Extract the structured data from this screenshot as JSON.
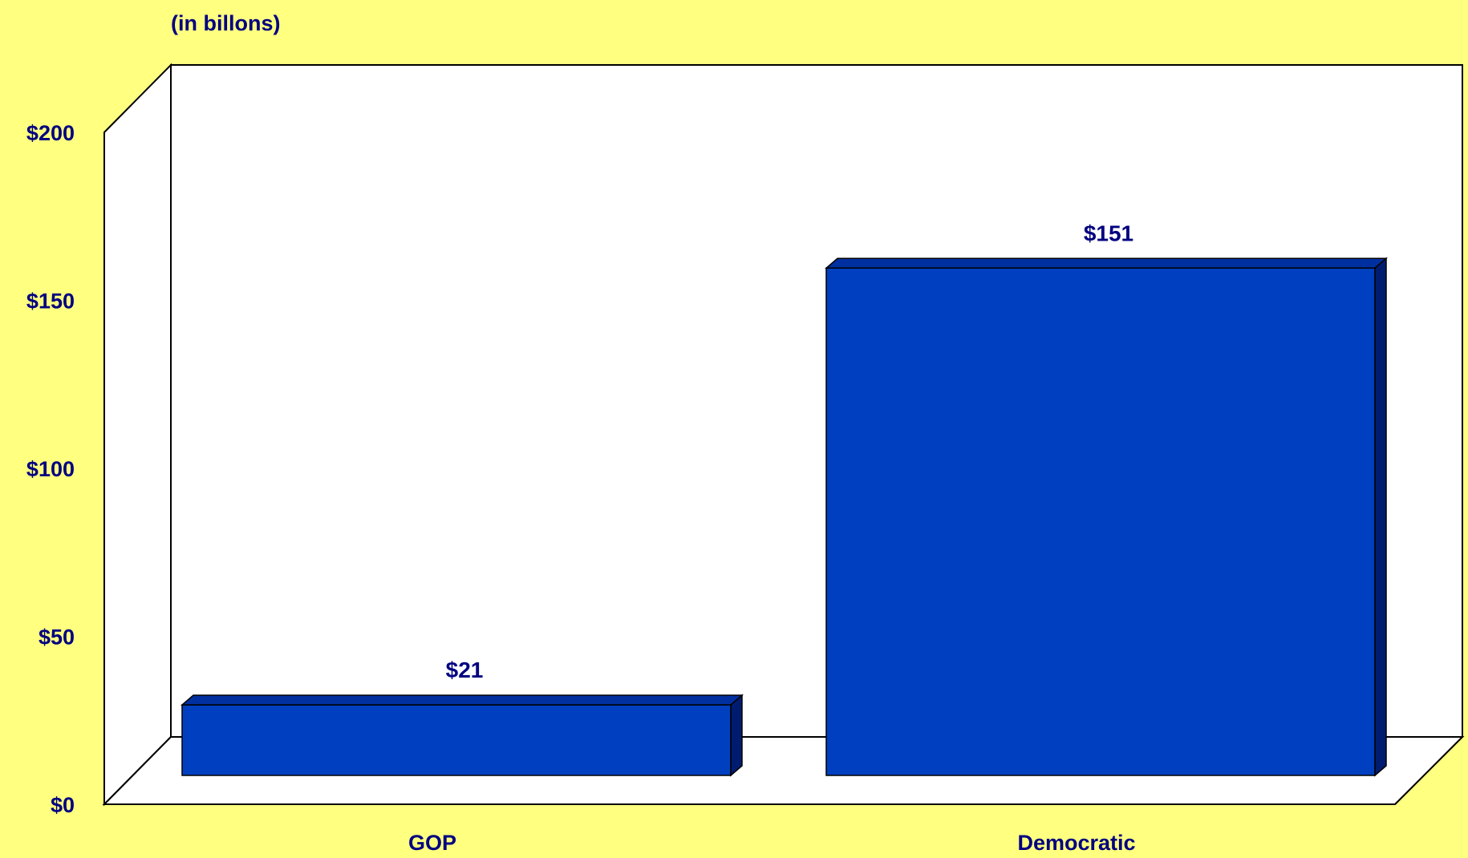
{
  "chart_data": {
    "type": "bar",
    "subtitle": "(in billons)",
    "categories": [
      "GOP",
      "Democratic"
    ],
    "values": [
      21,
      151
    ],
    "data_labels": [
      "$21",
      "$151"
    ],
    "y_ticks": [
      "$0",
      "$50",
      "$100",
      "$150",
      "$200"
    ],
    "y_tick_values": [
      0,
      50,
      100,
      150,
      200
    ],
    "ylim": [
      0,
      200
    ],
    "style": "3d",
    "grid": false,
    "legend": "none",
    "colors": {
      "background": "#FFFF80",
      "plot_area": "#FFFFFF",
      "bar_front": "#0040C0",
      "bar_top": "#0030A0",
      "bar_side": "#001C70",
      "text": "#000080"
    }
  }
}
